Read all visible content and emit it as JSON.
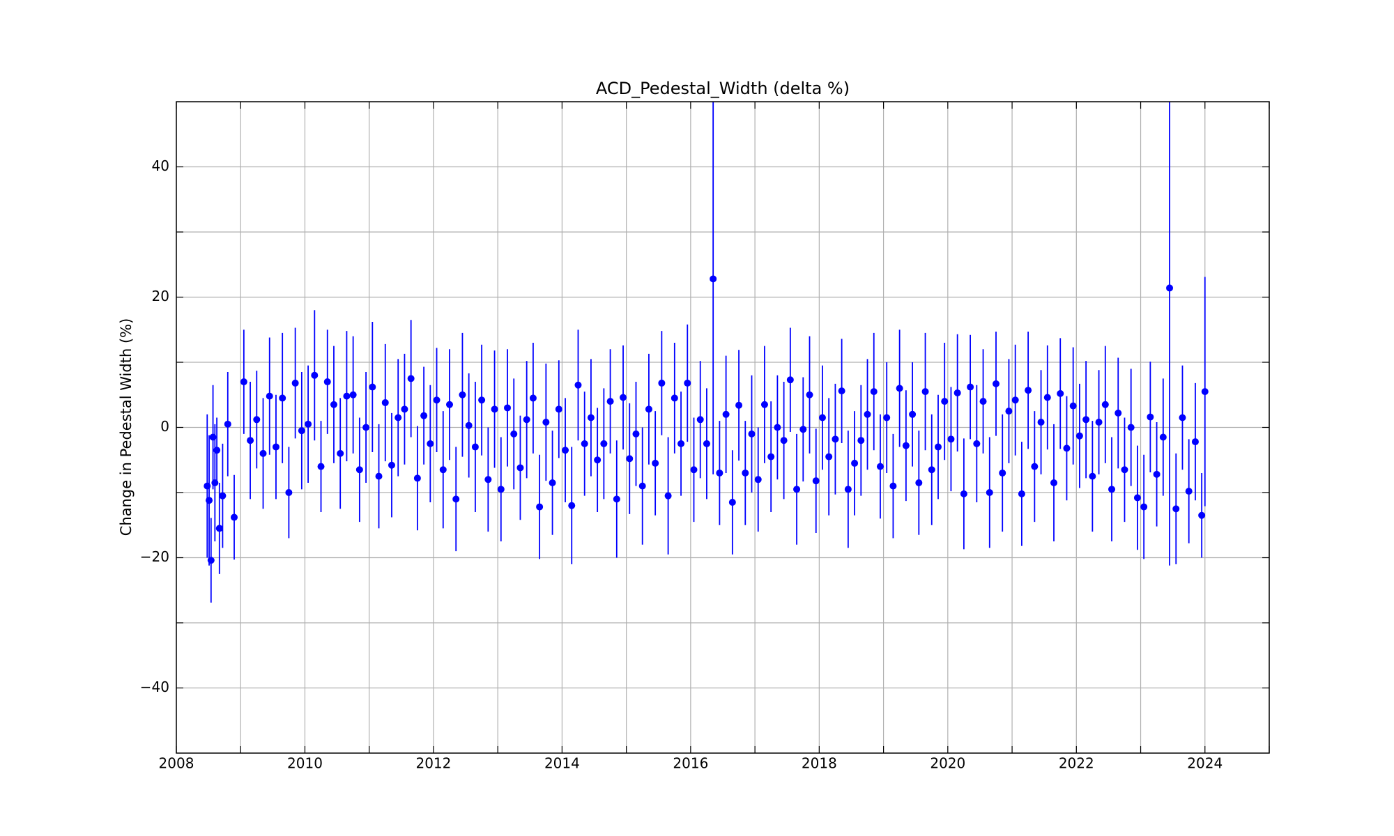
{
  "chart_data": {
    "type": "errorbar",
    "title": "ACD_Pedestal_Width (delta %)",
    "y_label": "Change in Pedestal Width (%)",
    "xlim": [
      2008,
      2025
    ],
    "ylim": [
      -50,
      50
    ],
    "xticks": [
      2008,
      2010,
      2012,
      2014,
      2016,
      2018,
      2020,
      2022,
      2024
    ],
    "xminorticks": [
      2009,
      2011,
      2013,
      2015,
      2017,
      2019,
      2021,
      2023,
      2025
    ],
    "yticks": [
      {
        "value": -40,
        "label": "−40"
      },
      {
        "value": -20,
        "label": "−20"
      },
      0,
      20,
      40
    ],
    "yminorticks": [
      -30,
      -10,
      10,
      30
    ],
    "grid": true,
    "series": [
      {
        "color": "#0000ff",
        "x": [
          2008.48,
          2008.51,
          2008.54,
          2008.57,
          2008.6,
          2008.63,
          2008.67,
          2008.72,
          2008.8,
          2008.9,
          2009.05,
          2009.15,
          2009.25,
          2009.35,
          2009.45,
          2009.55,
          2009.65,
          2009.75,
          2009.85,
          2009.95,
          2010.05,
          2010.15,
          2010.25,
          2010.35,
          2010.45,
          2010.55,
          2010.65,
          2010.75,
          2010.85,
          2010.95,
          2011.05,
          2011.15,
          2011.25,
          2011.35,
          2011.45,
          2011.55,
          2011.65,
          2011.75,
          2011.85,
          2011.95,
          2012.05,
          2012.15,
          2012.25,
          2012.35,
          2012.45,
          2012.55,
          2012.65,
          2012.75,
          2012.85,
          2012.95,
          2013.05,
          2013.15,
          2013.25,
          2013.35,
          2013.45,
          2013.55,
          2013.65,
          2013.75,
          2013.85,
          2013.95,
          2014.05,
          2014.15,
          2014.25,
          2014.35,
          2014.45,
          2014.55,
          2014.65,
          2014.75,
          2014.85,
          2014.95,
          2015.05,
          2015.15,
          2015.25,
          2015.35,
          2015.45,
          2015.55,
          2015.65,
          2015.75,
          2015.85,
          2015.95,
          2016.05,
          2016.15,
          2016.25,
          2016.35,
          2016.45,
          2016.55,
          2016.65,
          2016.75,
          2016.85,
          2016.95,
          2017.05,
          2017.15,
          2017.25,
          2017.35,
          2017.45,
          2017.55,
          2017.65,
          2017.75,
          2017.85,
          2017.95,
          2018.05,
          2018.15,
          2018.25,
          2018.35,
          2018.45,
          2018.55,
          2018.65,
          2018.75,
          2018.85,
          2018.95,
          2019.05,
          2019.15,
          2019.25,
          2019.35,
          2019.45,
          2019.55,
          2019.65,
          2019.75,
          2019.85,
          2019.95,
          2020.05,
          2020.15,
          2020.25,
          2020.35,
          2020.45,
          2020.55,
          2020.65,
          2020.75,
          2020.85,
          2020.95,
          2021.05,
          2021.15,
          2021.25,
          2021.35,
          2021.45,
          2021.55,
          2021.65,
          2021.75,
          2021.85,
          2021.95,
          2022.05,
          2022.15,
          2022.25,
          2022.35,
          2022.45,
          2022.55,
          2022.65,
          2022.75,
          2022.85,
          2022.95,
          2023.05,
          2023.15,
          2023.25,
          2023.35,
          2023.45,
          2023.55,
          2023.65,
          2023.75,
          2023.85,
          2023.95,
          2024.0
        ],
        "values": [
          -9,
          -11.2,
          -20.4,
          -1.5,
          -8.5,
          -3.5,
          -15.5,
          -10.5,
          0.5,
          -13.8,
          7,
          -2,
          1.2,
          -4,
          4.8,
          -3,
          4.5,
          -10,
          6.8,
          -0.5,
          0.5,
          8,
          -6,
          7,
          3.5,
          -4,
          4.8,
          5,
          -6.5,
          0,
          6.2,
          -7.5,
          3.8,
          -5.8,
          1.5,
          2.8,
          7.5,
          -7.8,
          1.8,
          -2.5,
          4.2,
          -6.5,
          3.5,
          -11,
          5,
          0.3,
          -3,
          4.2,
          -8,
          2.8,
          -9.5,
          3,
          -1,
          -6.2,
          1.2,
          4.5,
          -12.2,
          0.8,
          -8.5,
          2.8,
          -3.5,
          -12,
          6.5,
          -2.5,
          1.5,
          -5,
          -2.5,
          4,
          -11,
          4.6,
          -4.8,
          -1,
          -9,
          2.8,
          -5.5,
          6.8,
          -10.5,
          4.5,
          -2.5,
          6.8,
          -6.5,
          1.2,
          -2.5,
          22.8,
          -7,
          2,
          -11.5,
          3.4,
          -7,
          -1,
          -8,
          3.5,
          -4.5,
          0,
          -2,
          7.3,
          -9.5,
          -0.3,
          5,
          -8.2,
          1.5,
          -4.5,
          -1.8,
          5.6,
          -9.5,
          -5.5,
          -2,
          2,
          5.5,
          -6,
          1.5,
          -9,
          6,
          -2.8,
          2,
          -8.5,
          5.5,
          -6.5,
          -3,
          4,
          -1.8,
          5.3,
          -10.2,
          6.2,
          -2.5,
          4,
          -10,
          6.7,
          -7,
          2.5,
          4.2,
          -10.2,
          5.7,
          -6,
          0.8,
          4.6,
          -8.5,
          5.2,
          -3.2,
          3.3,
          -1.3,
          1.2,
          -7.5,
          0.8,
          3.5,
          -9.5,
          2.2,
          -6.5,
          0,
          -10.8,
          -12.2,
          1.6,
          -7.2,
          -1.5,
          21.4,
          -12.5,
          1.5,
          -9.8,
          -2.2,
          -13.5,
          5.5
        ],
        "errors": [
          11,
          10,
          6.5,
          8,
          9,
          5,
          7,
          8,
          8,
          6.5,
          8,
          9,
          7.5,
          8.5,
          9,
          8,
          10,
          7,
          8.5,
          9,
          9,
          10,
          7,
          8,
          9,
          8.5,
          10,
          9,
          8,
          8.5,
          10,
          8,
          9,
          8,
          9,
          8.5,
          9,
          8,
          7.5,
          9,
          8,
          9,
          8.5,
          8,
          9.5,
          8,
          10,
          8.5,
          8,
          9,
          8,
          9,
          8.5,
          8,
          9,
          8.5,
          8,
          9,
          8,
          7.5,
          8,
          9,
          8.5,
          8,
          9,
          8,
          8.5,
          8,
          9,
          8,
          8.5,
          8,
          9,
          8.5,
          8,
          8,
          9,
          8.5,
          8,
          9,
          8,
          9,
          8.5,
          30,
          8,
          9,
          8,
          8.5,
          8,
          9,
          8,
          9,
          8.5,
          8,
          9,
          8,
          8.5,
          8,
          9,
          8,
          8,
          9,
          8.5,
          8,
          9,
          8,
          8.5,
          8.5,
          9,
          8,
          8.5,
          8,
          9,
          8.5,
          8,
          8,
          9,
          8.5,
          8,
          9,
          8,
          9,
          8.5,
          8,
          9,
          8,
          8.5,
          8,
          9,
          8,
          8.5,
          8,
          9,
          8.5,
          8,
          8,
          9,
          8.5,
          8,
          9,
          8,
          9,
          8.5,
          8,
          9,
          8,
          8.5,
          8,
          9,
          8,
          8,
          8.5,
          8,
          9,
          42.6,
          8.5,
          8,
          8,
          9,
          6.5,
          17.6
        ]
      }
    ]
  }
}
